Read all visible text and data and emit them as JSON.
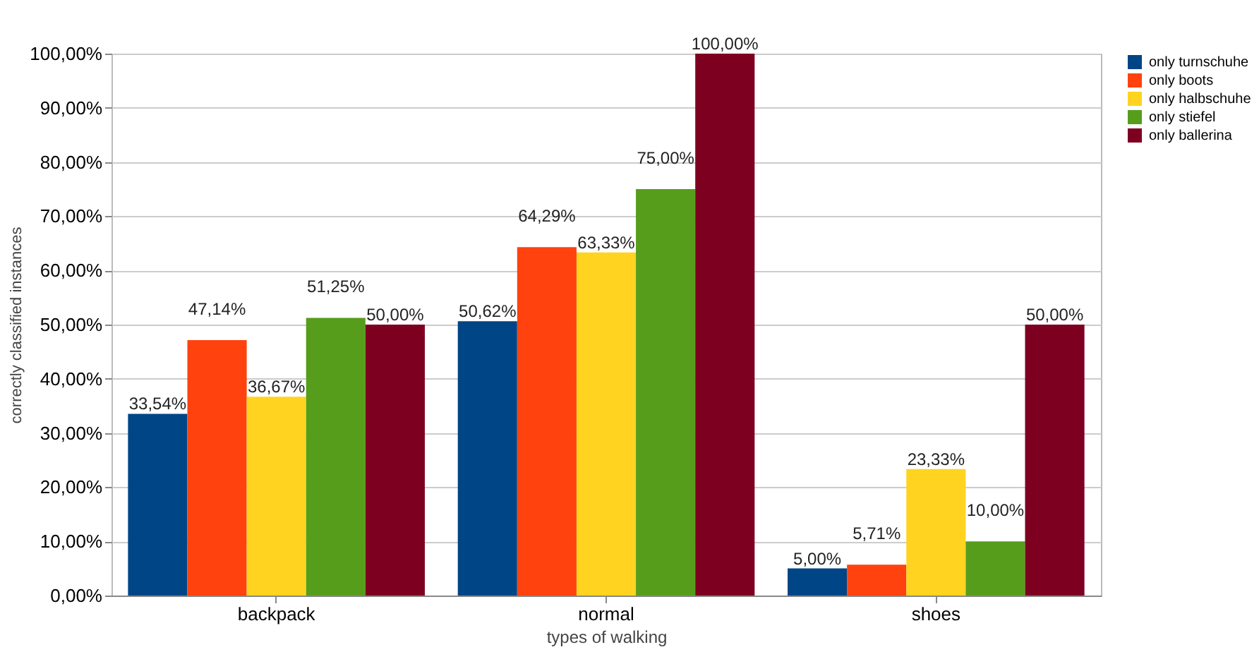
{
  "chart_data": {
    "type": "bar",
    "xlabel": "types of walking",
    "ylabel": "correctly classified instances",
    "categories": [
      "backpack",
      "normal",
      "shoes"
    ],
    "series": [
      {
        "name": "only turnschuhe",
        "color": "#004586",
        "values": [
          33.54,
          50.62,
          5.0
        ],
        "value_labels": [
          "33,54%",
          "50,62%",
          "5,00%"
        ]
      },
      {
        "name": "only boots",
        "color": "#ff420e",
        "values": [
          47.14,
          64.29,
          5.71
        ],
        "value_labels": [
          "47,14%",
          "64,29%",
          "5,71%"
        ]
      },
      {
        "name": "only halbschuhe",
        "color": "#ffd320",
        "values": [
          36.67,
          63.33,
          23.33
        ],
        "value_labels": [
          "36,67%",
          "63,33%",
          "23,33%"
        ]
      },
      {
        "name": "only stiefel",
        "color": "#579d1c",
        "values": [
          51.25,
          75.0,
          10.0
        ],
        "value_labels": [
          "51,25%",
          "75,00%",
          "10,00%"
        ]
      },
      {
        "name": "only ballerina",
        "color": "#7e0021",
        "values": [
          50.0,
          100.0,
          50.0
        ],
        "value_labels": [
          "50,00%",
          "100,00%",
          "50,00%"
        ]
      }
    ],
    "ylim": [
      0,
      100
    ],
    "yticks": [
      {
        "value": 0,
        "label": "0,00%"
      },
      {
        "value": 10,
        "label": "10,00%"
      },
      {
        "value": 20,
        "label": "20,00%"
      },
      {
        "value": 30,
        "label": "30,00%"
      },
      {
        "value": 40,
        "label": "40,00%"
      },
      {
        "value": 50,
        "label": "50,00%"
      },
      {
        "value": 60,
        "label": "60,00%"
      },
      {
        "value": 70,
        "label": "70,00%"
      },
      {
        "value": 80,
        "label": "80,00%"
      },
      {
        "value": 90,
        "label": "90,00%"
      },
      {
        "value": 100,
        "label": "100,00%"
      }
    ],
    "grid": "y",
    "legend": "right"
  }
}
